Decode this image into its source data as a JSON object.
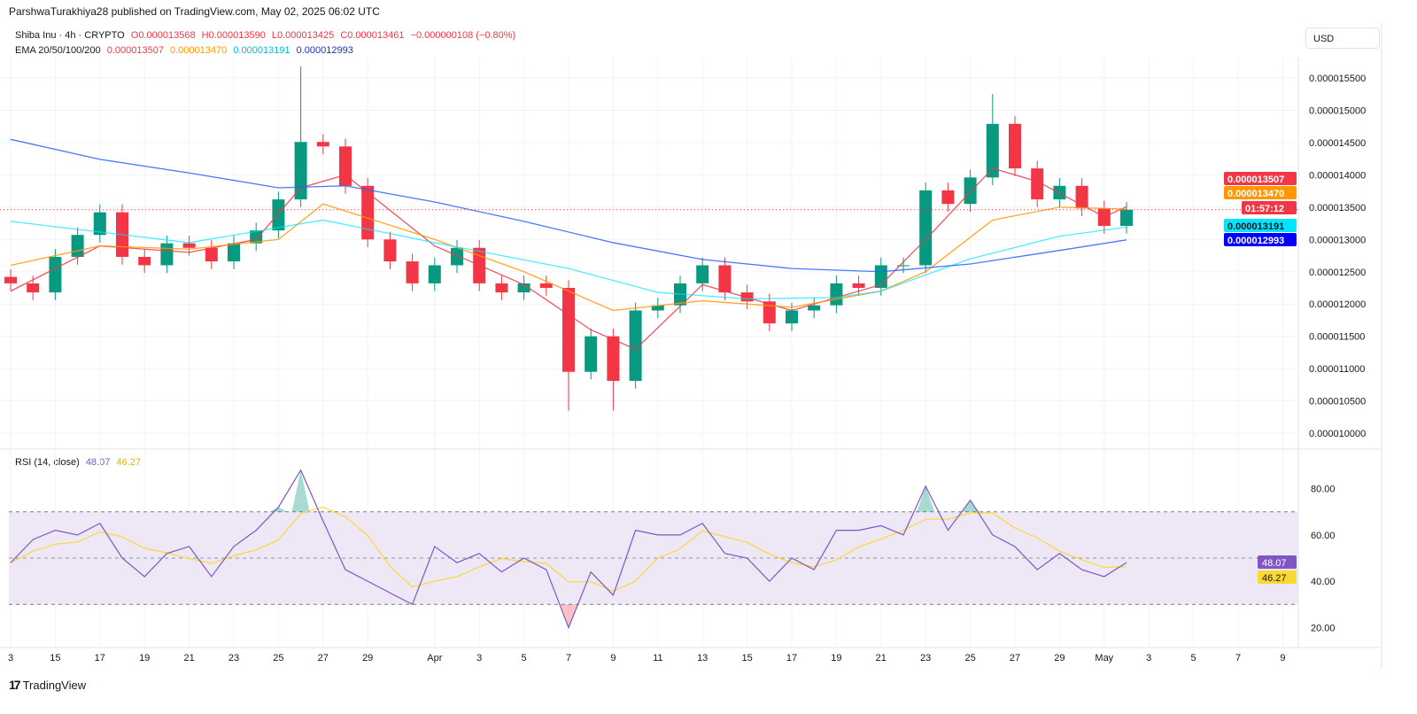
{
  "header": "ParshwaTurakhiya28 published on TradingView.com, May 02, 2025 06:02 UTC",
  "legend": {
    "symbol": "Shiba Inu · 4h · CRYPTO",
    "o": "O0.000013568",
    "h": "H0.000013590",
    "l": "L0.000013425",
    "c": "C0.000013461",
    "change": "−0.000000108 (−0.80%)",
    "ema_label": "EMA 20/50/100/200",
    "ema_values": [
      "0.000013507",
      "0.000013470",
      "0.000013191",
      "0.000012993"
    ],
    "rsi_label": "RSI (14, close)",
    "rsi_value": "48.07",
    "rsi_ma_value": "46.27"
  },
  "currency_button": "USD",
  "countdown": "01:57:12",
  "footer_logo": "TradingView",
  "colors": {
    "up": "#089981",
    "down": "#f23645",
    "ema20": "#f23645",
    "ema50": "#ff9800",
    "ema100": "#00e5ff",
    "ema200": "#2962ff",
    "rsi": "#7e57c2",
    "rsi_ma": "#fdd835",
    "rsi_band": "#ede7f6"
  },
  "chart_data": [
    {
      "type": "candlestick",
      "title": "Shiba Inu · 4h · CRYPTO",
      "price_unit": "USD",
      "ylim": [
        9.9e-06,
        1.6e-05
      ],
      "y_ticks": [
        "0.000010000",
        "0.000010500",
        "0.000011000",
        "0.000011500",
        "0.000012000",
        "0.000012500",
        "0.000013000",
        "0.000013500",
        "0.000014000",
        "0.000014500",
        "0.000015000",
        "0.000015500"
      ],
      "x_ticks": [
        "3",
        "15",
        "17",
        "19",
        "21",
        "23",
        "25",
        "27",
        "29",
        "Apr",
        "3",
        "5",
        "7",
        "9",
        "11",
        "13",
        "15",
        "17",
        "19",
        "21",
        "23",
        "25",
        "27",
        "29",
        "May",
        "3",
        "5",
        "7",
        "9"
      ],
      "x_tick_dates": [
        "2025-03-13",
        "2025-03-15",
        "2025-03-17",
        "2025-03-19",
        "2025-03-21",
        "2025-03-23",
        "2025-03-25",
        "2025-03-27",
        "2025-03-29",
        "2025-04-01",
        "2025-04-03",
        "2025-04-05",
        "2025-04-07",
        "2025-04-09",
        "2025-04-11",
        "2025-04-13",
        "2025-04-15",
        "2025-04-17",
        "2025-04-19",
        "2025-04-21",
        "2025-04-23",
        "2025-04-25",
        "2025-04-27",
        "2025-04-29",
        "2025-05-01",
        "2025-05-03",
        "2025-05-05",
        "2025-05-07",
        "2025-05-09"
      ],
      "close_start_date": "2025-03-13",
      "closes_e6": [
        12.32,
        12.18,
        12.73,
        13.07,
        13.42,
        12.73,
        12.6,
        12.94,
        12.87,
        12.66,
        12.94,
        13.14,
        13.62,
        14.51,
        14.44,
        13.83,
        13.0,
        12.66,
        12.32,
        12.6,
        12.87,
        12.32,
        12.18,
        12.32,
        12.25,
        10.95,
        11.5,
        10.81,
        11.9,
        11.98,
        12.32,
        12.6,
        12.18,
        12.04,
        11.7,
        11.9,
        11.98,
        12.32,
        12.25,
        12.6,
        12.6,
        13.76,
        13.55,
        13.96,
        14.79,
        14.1,
        13.62,
        13.83,
        13.48,
        13.21,
        13.461
      ],
      "notable_highs_e6": {
        "2025-03-26": 15.68,
        "2025-04-26": 15.25
      },
      "notable_lows_e6": {
        "2025-04-07": 10.35,
        "2025-04-09": 10.35
      },
      "current_price": "0.000013461",
      "series": [
        {
          "name": "EMA 20",
          "value": "0.000013507",
          "points_e6": [
            [
              "2025-03-13",
              12.2
            ],
            [
              "2025-03-17",
              12.9
            ],
            [
              "2025-03-21",
              12.8
            ],
            [
              "2025-03-24",
              13.0
            ],
            [
              "2025-03-26",
              13.8
            ],
            [
              "2025-03-28",
              14.0
            ],
            [
              "2025-04-01",
              12.9
            ],
            [
              "2025-04-05",
              12.3
            ],
            [
              "2025-04-08",
              11.6
            ],
            [
              "2025-04-10",
              11.3
            ],
            [
              "2025-04-13",
              12.3
            ],
            [
              "2025-04-17",
              11.9
            ],
            [
              "2025-04-21",
              12.3
            ],
            [
              "2025-04-23",
              13.0
            ],
            [
              "2025-04-26",
              14.1
            ],
            [
              "2025-04-28",
              13.9
            ],
            [
              "2025-05-01",
              13.35
            ],
            [
              "2025-05-02",
              13.507
            ]
          ]
        },
        {
          "name": "EMA 50",
          "value": "0.000013470",
          "points_e6": [
            [
              "2025-03-13",
              12.6
            ],
            [
              "2025-03-17",
              12.9
            ],
            [
              "2025-03-21",
              12.85
            ],
            [
              "2025-03-25",
              13.0
            ],
            [
              "2025-03-27",
              13.55
            ],
            [
              "2025-04-01",
              13.0
            ],
            [
              "2025-04-05",
              12.5
            ],
            [
              "2025-04-09",
              11.9
            ],
            [
              "2025-04-13",
              12.05
            ],
            [
              "2025-04-17",
              11.95
            ],
            [
              "2025-04-21",
              12.2
            ],
            [
              "2025-04-23",
              12.5
            ],
            [
              "2025-04-26",
              13.3
            ],
            [
              "2025-04-29",
              13.5
            ],
            [
              "2025-05-02",
              13.47
            ]
          ]
        },
        {
          "name": "EMA 100",
          "value": "0.000013191",
          "points_e6": [
            [
              "2025-03-13",
              13.28
            ],
            [
              "2025-03-21",
              12.95
            ],
            [
              "2025-03-27",
              13.3
            ],
            [
              "2025-04-01",
              12.95
            ],
            [
              "2025-04-07",
              12.55
            ],
            [
              "2025-04-11",
              12.18
            ],
            [
              "2025-04-15",
              12.08
            ],
            [
              "2025-04-19",
              12.1
            ],
            [
              "2025-04-21",
              12.2
            ],
            [
              "2025-04-25",
              12.7
            ],
            [
              "2025-04-29",
              13.05
            ],
            [
              "2025-05-02",
              13.191
            ]
          ]
        },
        {
          "name": "EMA 200",
          "value": "0.000012993",
          "points_e6": [
            [
              "2025-03-13",
              14.55
            ],
            [
              "2025-03-17",
              14.24
            ],
            [
              "2025-03-21",
              14.03
            ],
            [
              "2025-03-25",
              13.8
            ],
            [
              "2025-03-28",
              13.83
            ],
            [
              "2025-04-01",
              13.58
            ],
            [
              "2025-04-05",
              13.28
            ],
            [
              "2025-04-09",
              12.95
            ],
            [
              "2025-04-13",
              12.69
            ],
            [
              "2025-04-17",
              12.55
            ],
            [
              "2025-04-21",
              12.5
            ],
            [
              "2025-04-25",
              12.62
            ],
            [
              "2025-04-29",
              12.83
            ],
            [
              "2025-05-02",
              12.993
            ]
          ]
        }
      ]
    },
    {
      "type": "line",
      "title": "RSI (14, close)",
      "ylim": [
        15,
        92
      ],
      "y_ticks": [
        "20.00",
        "40.00",
        "60.00",
        "80.00"
      ],
      "bands": [
        30,
        50,
        70
      ],
      "start_date": "2025-03-13",
      "rsi": [
        48,
        58,
        62,
        60,
        65,
        50,
        42,
        52,
        55,
        42,
        55,
        62,
        72,
        88,
        66,
        45,
        40,
        35,
        30,
        55,
        48,
        52,
        44,
        50,
        45,
        20,
        44,
        34,
        62,
        60,
        60,
        65,
        52,
        50,
        40,
        50,
        45,
        62,
        62,
        64,
        60,
        81,
        62,
        75,
        60,
        55,
        45,
        52,
        45,
        42,
        48.07
      ],
      "rsi_ma_last": 46.27
    }
  ]
}
